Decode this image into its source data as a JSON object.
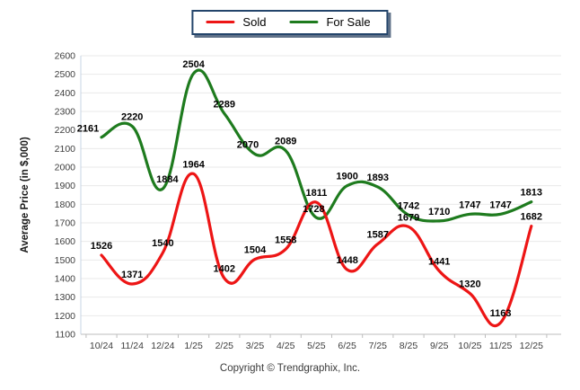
{
  "legend": {
    "items": [
      {
        "label": "Sold",
        "color": "#ed1515"
      },
      {
        "label": "For Sale",
        "color": "#1e7b1e"
      }
    ],
    "border_color": "#24456b",
    "shadow_color": "#5f7188"
  },
  "footer": {
    "copyright": "Copyright © Trendgraphix, Inc."
  },
  "chart_data": {
    "type": "line",
    "title": "",
    "xlabel": "",
    "ylabel": "Average Price (in $,000)",
    "categories": [
      "10/24",
      "11/24",
      "12/24",
      "1/25",
      "2/25",
      "3/25",
      "4/25",
      "5/25",
      "6/25",
      "7/25",
      "8/25",
      "9/25",
      "10/25",
      "11/25",
      "12/25"
    ],
    "series": [
      {
        "name": "Sold",
        "color": "#ed1515",
        "values": [
          1526,
          1371,
          1540,
          1964,
          1402,
          1504,
          1558,
          1811,
          1448,
          1587,
          1679,
          1441,
          1320,
          1163,
          1682
        ]
      },
      {
        "name": "For Sale",
        "color": "#1e7b1e",
        "values": [
          2161,
          2220,
          1884,
          2504,
          2289,
          2070,
          2089,
          1728,
          1900,
          1893,
          1742,
          1710,
          1747,
          1747,
          1813
        ]
      }
    ],
    "ylim": [
      1100,
      2600
    ],
    "ytick_step": 100,
    "y_ticks": [
      1100,
      1200,
      1300,
      1400,
      1500,
      1600,
      1700,
      1800,
      1900,
      2000,
      2100,
      2200,
      2300,
      2400,
      2500,
      2600
    ],
    "grid": "horizontal",
    "data_labels": true,
    "legend_position": "top-center",
    "colors": {
      "gridline": "#e9e9e9",
      "x_axis": "#bdbdbd",
      "y_axis": "#c7d4e4",
      "tick_text": "#3d3d3d",
      "data_label_text": "#000000",
      "axis_title_text": "#1a1a1a"
    }
  }
}
